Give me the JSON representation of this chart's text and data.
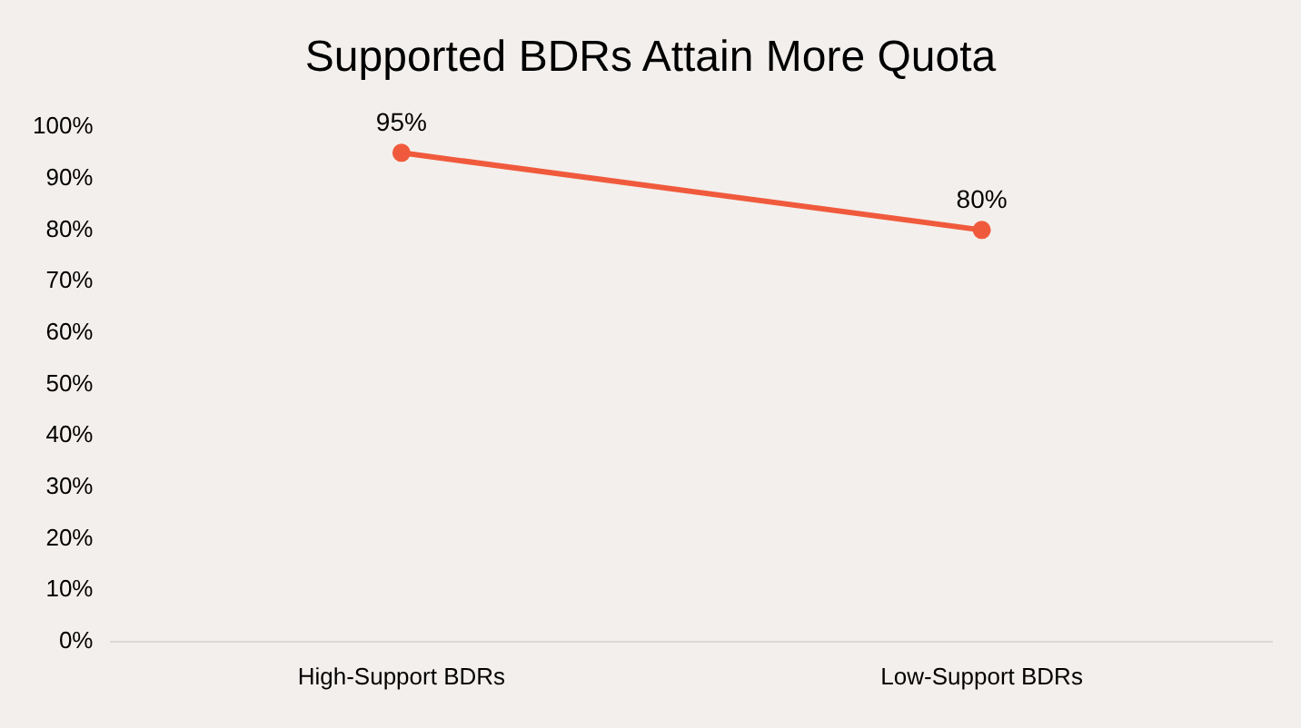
{
  "chart_data": {
    "type": "line",
    "title": "Supported BDRs Attain More Quota",
    "categories": [
      "High-Support BDRs",
      "Low-Support BDRs"
    ],
    "series": [
      {
        "color": "#f05a3c",
        "values": [
          95,
          80
        ],
        "value_labels": [
          "95%",
          "80%"
        ]
      }
    ],
    "ylim": [
      0,
      100
    ],
    "yticks": [
      {
        "value": 0,
        "label": "0%"
      },
      {
        "value": 10,
        "label": "10%"
      },
      {
        "value": 20,
        "label": "20%"
      },
      {
        "value": 30,
        "label": "30%"
      },
      {
        "value": 40,
        "label": "40%"
      },
      {
        "value": 50,
        "label": "50%"
      },
      {
        "value": 60,
        "label": "60%"
      },
      {
        "value": 70,
        "label": "70%"
      },
      {
        "value": 80,
        "label": "80%"
      },
      {
        "value": 90,
        "label": "90%"
      },
      {
        "value": 100,
        "label": "100%"
      }
    ],
    "grid": false,
    "legend": false,
    "marker": "circle",
    "line_style": "solid"
  }
}
